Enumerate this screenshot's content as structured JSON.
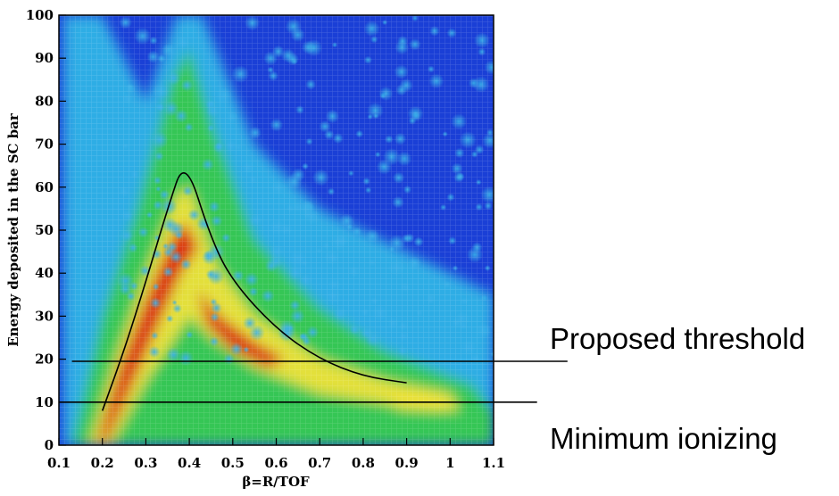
{
  "chart_data": {
    "type": "heatmap",
    "xlabel": "β=R/TOF",
    "ylabel": "Energy deposited in the SC bar",
    "xlim": [
      0.1,
      1.1
    ],
    "ylim": [
      0,
      100
    ],
    "xticks": [
      "0.1",
      "0.2",
      "0.3",
      "0.4",
      "0.5",
      "0.6",
      "0.7",
      "0.8",
      "0.9",
      "1",
      "1.1"
    ],
    "yticks": [
      "0",
      "10",
      "20",
      "30",
      "40",
      "50",
      "60",
      "70",
      "80",
      "90",
      "100"
    ],
    "colors": {
      "low": "#1a3fd6",
      "mid_low": "#2fb6e6",
      "mid": "#35c94a",
      "mid_high": "#f2e23a",
      "high": "#d81e12"
    },
    "grid": true,
    "band_curves": [
      {
        "x": [
          0.2,
          0.25,
          0.3,
          0.35,
          0.39,
          0.45,
          0.5,
          0.6,
          0.7,
          0.8,
          0.9
        ],
        "y": [
          8,
          22,
          38,
          55,
          67,
          48,
          38,
          27,
          20,
          16,
          14.5
        ]
      }
    ],
    "reference_lines": [
      {
        "label": "Proposed threshold",
        "y": 19.5,
        "x_start": 0.13,
        "x_end": 1.27
      },
      {
        "label": "Minimum ionizing",
        "y": 10,
        "x_start": 0.1,
        "x_end": 1.2
      }
    ]
  }
}
